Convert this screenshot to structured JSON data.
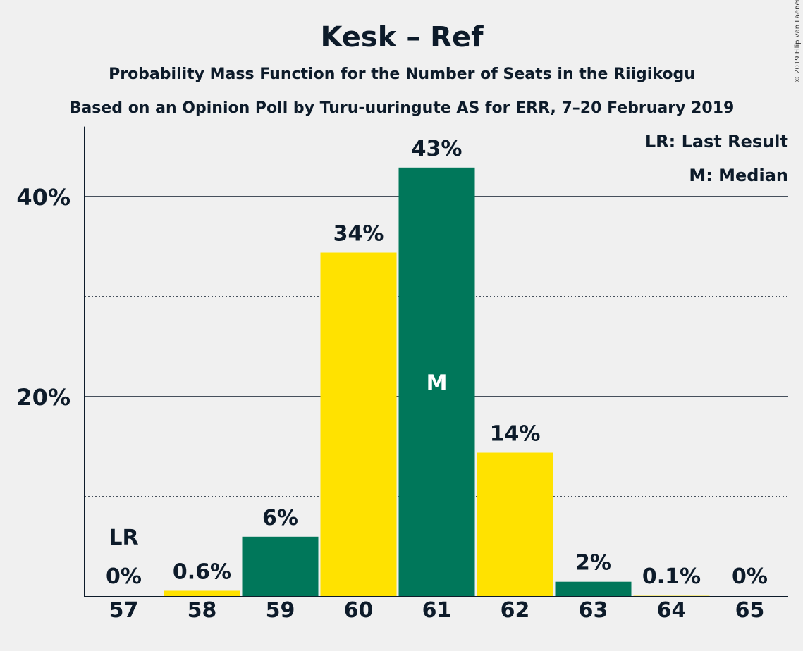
{
  "chart_data": {
    "type": "bar",
    "title": "Kesk – Ref",
    "subtitle_1": "Probability Mass Function for the Number of Seats in the Riigikogu",
    "subtitle_2": "Based on an Opinion Poll by Turu-uuringute AS for ERR, 7–20 February 2019",
    "copyright": "© 2019 Filip van Laenen",
    "legend": [
      "LR: Last Result",
      "M: Median"
    ],
    "legend_position": "top-right",
    "categories": [
      "57",
      "58",
      "59",
      "60",
      "61",
      "62",
      "63",
      "64",
      "65"
    ],
    "values": [
      0,
      0.6,
      6,
      34.4,
      42.9,
      14.4,
      1.5,
      0.1,
      0
    ],
    "value_labels": [
      "0%",
      "0.6%",
      "6%",
      "34%",
      "43%",
      "14%",
      "2%",
      "0.1%",
      "0%"
    ],
    "ylim": [
      0,
      47
    ],
    "yticks_major": [
      20,
      40
    ],
    "ytick_labels": [
      "20%",
      "40%"
    ],
    "yticks_minor": [
      10,
      30
    ],
    "last_result_category": "57",
    "last_result_label": "LR",
    "median_category": "61",
    "median_label": "M",
    "colors": {
      "green": "#00775a",
      "yellow": "#ffe200",
      "background": "#f0f0f0",
      "text": "#0d1b2a"
    }
  }
}
